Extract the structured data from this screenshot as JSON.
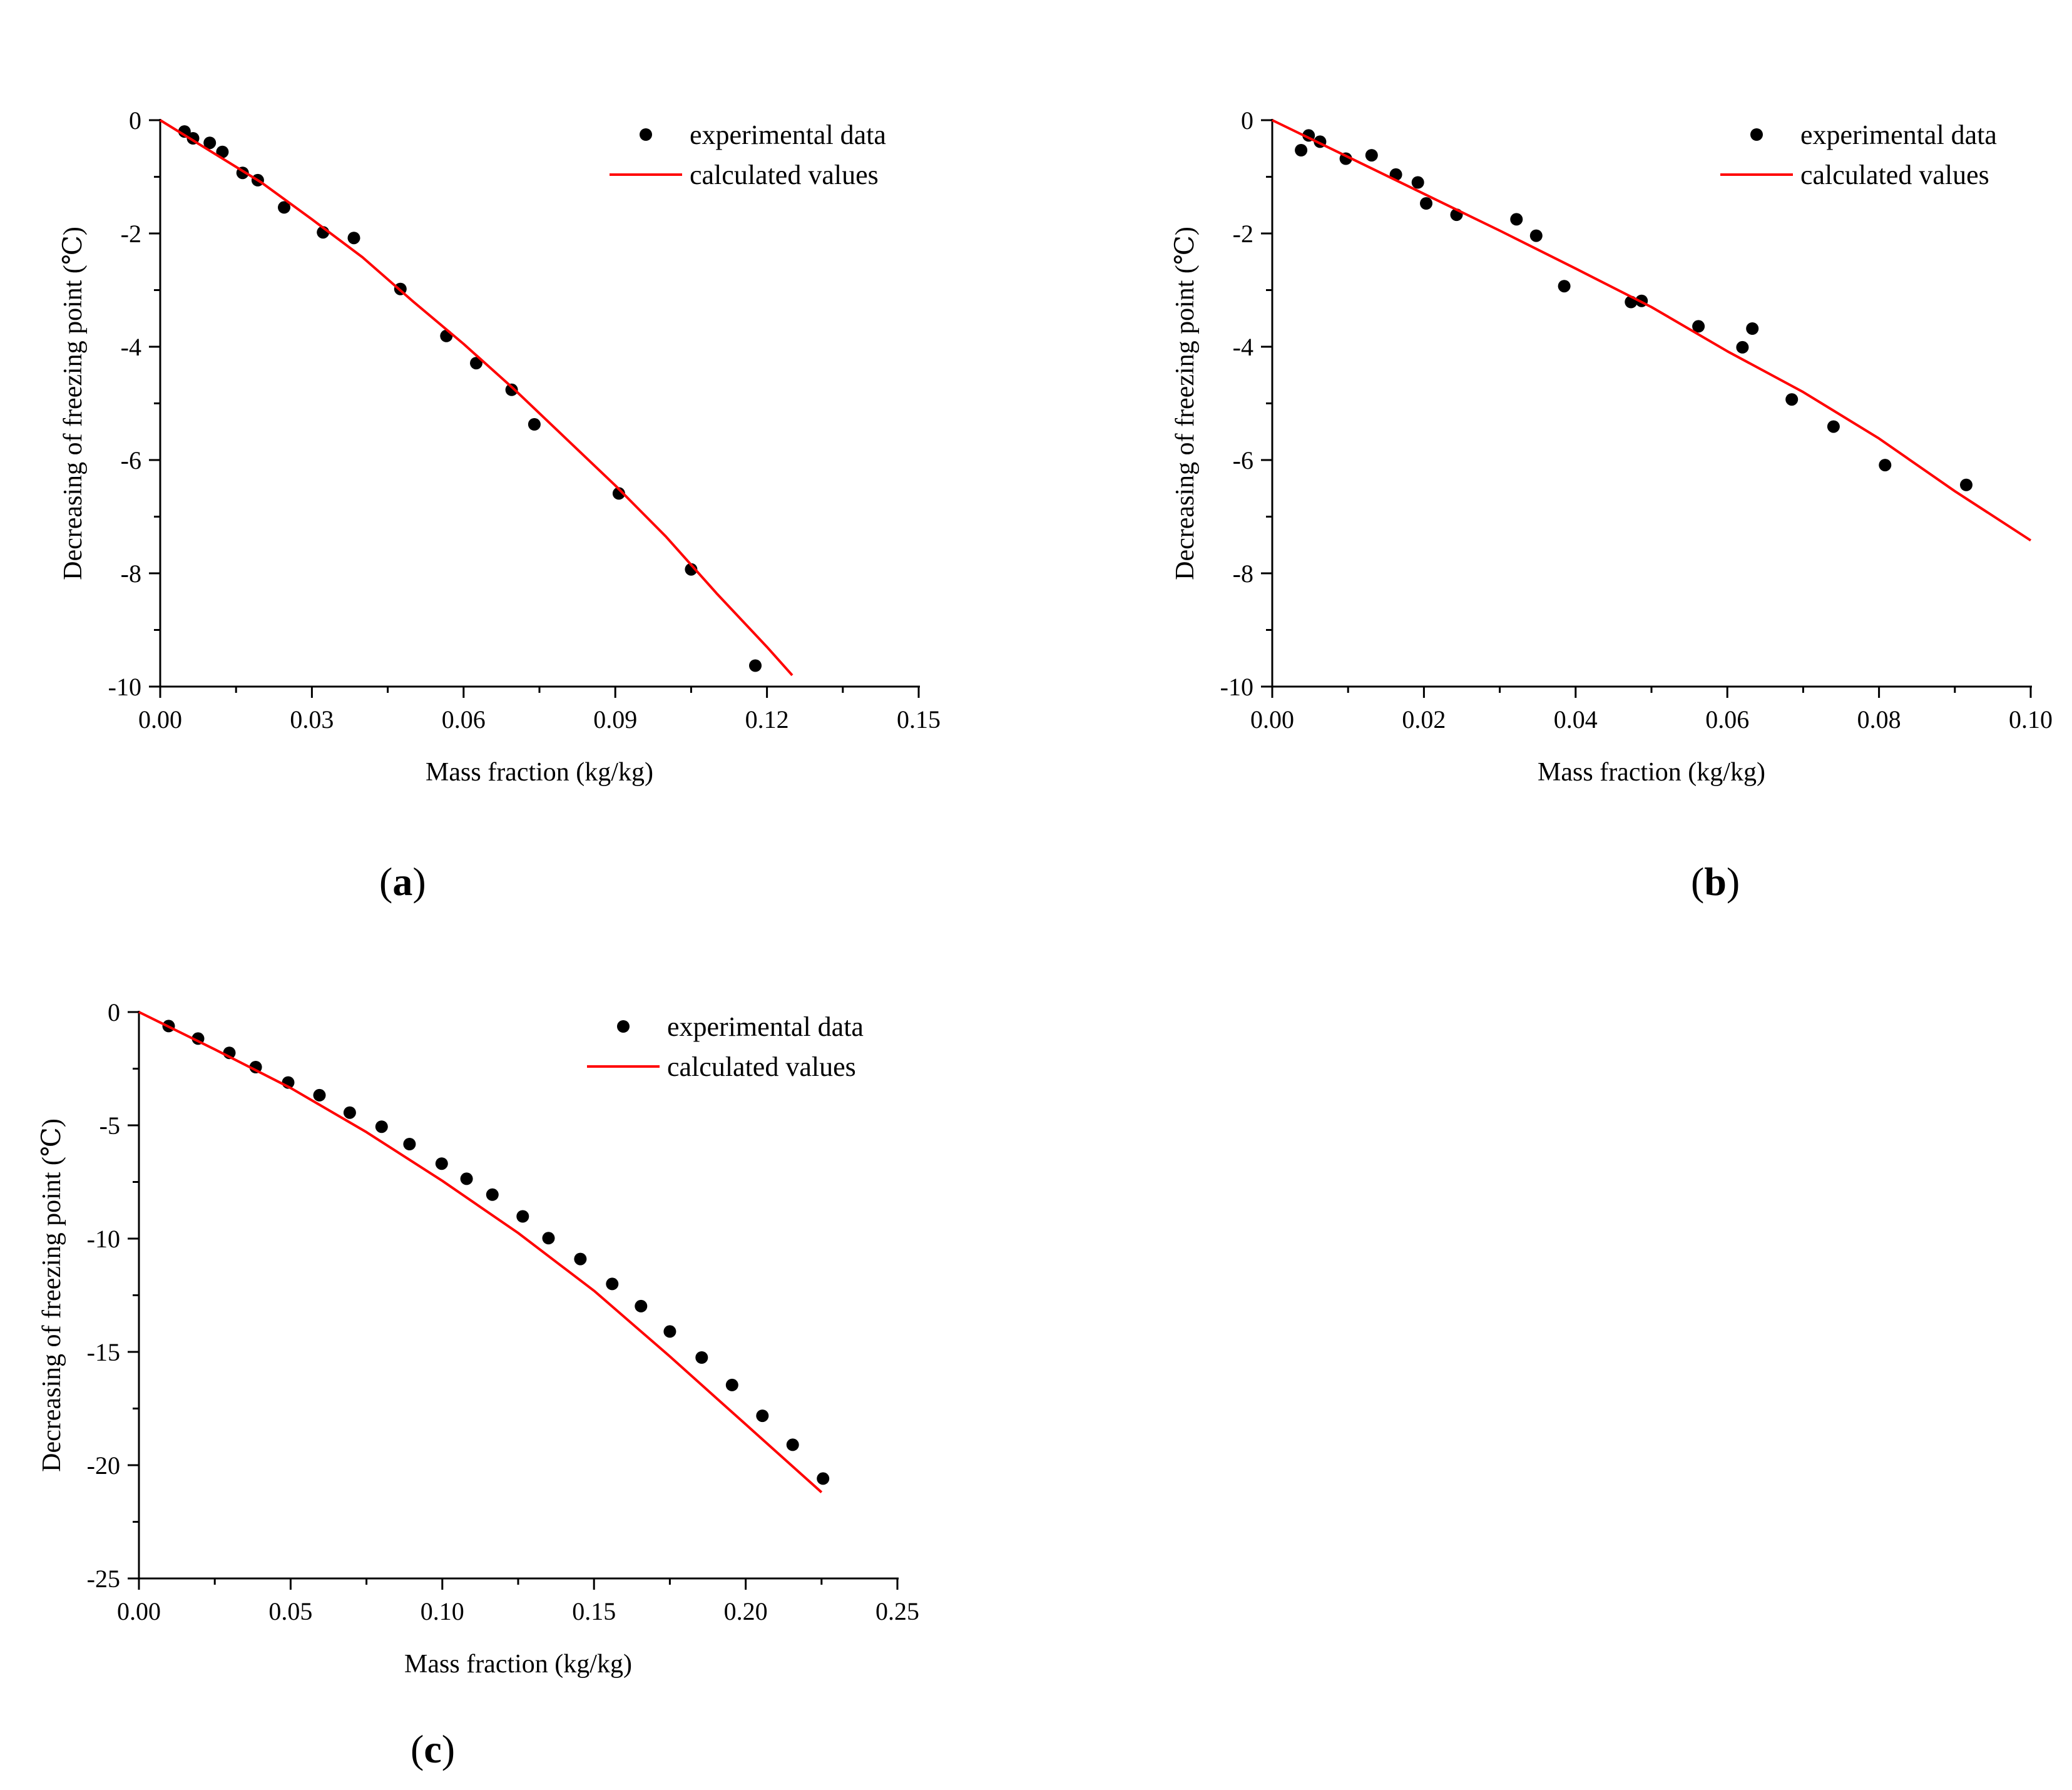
{
  "colors": {
    "points": "#000000",
    "line": "#ff0000",
    "axis": "#000000"
  },
  "panel_labels": {
    "a_open": "(",
    "a_letter": "a",
    "a_close": ")",
    "b_open": "(",
    "b_letter": "b",
    "b_close": ")",
    "c_open": "(",
    "c_letter": "c",
    "c_close": ")"
  },
  "chart_data": [
    {
      "id": "a",
      "type": "scatter",
      "title": "",
      "xlabel": "Mass fraction (kg/kg)",
      "ylabel": "Decreasing of freezing point (℃)",
      "xlim": [
        0,
        0.15
      ],
      "ylim": [
        -10,
        0
      ],
      "xticks": [
        "0.00",
        "0.03",
        "0.06",
        "0.09",
        "0.12",
        "0.15"
      ],
      "xtick_values": [
        0,
        0.03,
        0.06,
        0.09,
        0.12,
        0.15
      ],
      "yticks": [
        "0",
        "-2",
        "-4",
        "-6",
        "-8",
        "-10"
      ],
      "ytick_values": [
        0,
        -2,
        -4,
        -6,
        -8,
        -10
      ],
      "legend": {
        "position": "top-right",
        "entries": [
          "experimental data",
          "calculated values"
        ]
      },
      "series": [
        {
          "name": "experimental data",
          "kind": "scatter",
          "x": [
            0.0048,
            0.0065,
            0.0098,
            0.0123,
            0.0163,
            0.0193,
            0.0245,
            0.0322,
            0.0383,
            0.0475,
            0.0566,
            0.0625,
            0.0695,
            0.074,
            0.0907,
            0.105,
            0.1177
          ],
          "y": [
            -0.2,
            -0.32,
            -0.4,
            -0.56,
            -0.93,
            -1.06,
            -1.54,
            -1.98,
            -2.08,
            -2.98,
            -3.81,
            -4.29,
            -4.76,
            -5.37,
            -6.59,
            -7.93,
            -9.63
          ]
        },
        {
          "name": "calculated values",
          "kind": "line",
          "x": [
            0,
            0.01,
            0.02,
            0.03,
            0.04,
            0.05,
            0.06,
            0.07,
            0.08,
            0.09,
            0.1,
            0.11,
            0.12,
            0.125
          ],
          "y": [
            0,
            -0.55,
            -1.1,
            -1.75,
            -2.42,
            -3.2,
            -3.95,
            -4.75,
            -5.6,
            -6.45,
            -7.35,
            -8.35,
            -9.3,
            -9.8
          ]
        }
      ]
    },
    {
      "id": "b",
      "type": "scatter",
      "title": "",
      "xlabel": "Mass fraction (kg/kg)",
      "ylabel": "Decreasing of freezing point (℃)",
      "xlim": [
        0,
        0.1
      ],
      "ylim": [
        -10,
        0
      ],
      "xticks": [
        "0.00",
        "0.02",
        "0.04",
        "0.06",
        "0.08",
        "0.10"
      ],
      "xtick_values": [
        0,
        0.02,
        0.04,
        0.06,
        0.08,
        0.1
      ],
      "yticks": [
        "0",
        "-2",
        "-4",
        "-6",
        "-8",
        "-10"
      ],
      "ytick_values": [
        0,
        -2,
        -4,
        -6,
        -8,
        -10
      ],
      "legend": {
        "position": "top-right",
        "entries": [
          "experimental data",
          "calculated values"
        ]
      },
      "series": [
        {
          "name": "experimental data",
          "kind": "scatter",
          "x": [
            0.0038,
            0.0048,
            0.0063,
            0.0097,
            0.0131,
            0.0163,
            0.0192,
            0.0203,
            0.0243,
            0.0322,
            0.0348,
            0.0385,
            0.0473,
            0.0487,
            0.0562,
            0.062,
            0.0633,
            0.0685,
            0.074,
            0.0808,
            0.0915
          ],
          "y": [
            -0.53,
            -0.27,
            -0.38,
            -0.68,
            -0.62,
            -0.96,
            -1.1,
            -1.47,
            -1.67,
            -1.75,
            -2.04,
            -2.93,
            -3.21,
            -3.19,
            -3.64,
            -4.01,
            -3.68,
            -4.93,
            -5.41,
            -6.09,
            -6.44
          ]
        },
        {
          "name": "calculated values",
          "kind": "line",
          "x": [
            0,
            0.01,
            0.02,
            0.03,
            0.04,
            0.05,
            0.06,
            0.07,
            0.08,
            0.09,
            0.1
          ],
          "y": [
            0,
            -0.65,
            -1.3,
            -1.95,
            -2.62,
            -3.3,
            -4.08,
            -4.8,
            -5.62,
            -6.55,
            -7.42
          ]
        }
      ]
    },
    {
      "id": "c",
      "type": "scatter",
      "title": "",
      "xlabel": "Mass fraction (kg/kg)",
      "ylabel": "Decreasing  of freezing point (℃)",
      "xlim": [
        0,
        0.25
      ],
      "ylim": [
        -25,
        0
      ],
      "xticks": [
        "0.00",
        "0.05",
        "0.10",
        "0.15",
        "0.20",
        "0.25"
      ],
      "xtick_values": [
        0,
        0.05,
        0.1,
        0.15,
        0.2,
        0.25
      ],
      "yticks": [
        "0",
        "-5",
        "-10",
        "-15",
        "-20",
        "-25"
      ],
      "ytick_values": [
        0,
        -5,
        -10,
        -15,
        -20,
        -25
      ],
      "legend": {
        "position": "top-right",
        "entries": [
          "experimental data",
          "calculated values"
        ]
      },
      "series": [
        {
          "name": "experimental data",
          "kind": "scatter",
          "x": [
            0.0098,
            0.0195,
            0.0298,
            0.0385,
            0.0492,
            0.0595,
            0.0695,
            0.08,
            0.0892,
            0.0998,
            0.108,
            0.1165,
            0.1265,
            0.135,
            0.1455,
            0.156,
            0.1655,
            0.175,
            0.1855,
            0.1955,
            0.2055,
            0.2155,
            0.2255
          ],
          "y": [
            -0.62,
            -1.17,
            -1.8,
            -2.43,
            -3.11,
            -3.67,
            -4.44,
            -5.06,
            -5.83,
            -6.69,
            -7.36,
            -8.06,
            -9.02,
            -9.98,
            -10.9,
            -12.0,
            -12.98,
            -14.1,
            -15.25,
            -16.46,
            -17.82,
            -19.1,
            -20.59
          ]
        },
        {
          "name": "calculated values",
          "kind": "line",
          "x": [
            0,
            0.025,
            0.05,
            0.075,
            0.1,
            0.125,
            0.15,
            0.175,
            0.2,
            0.225
          ],
          "y": [
            0,
            -1.65,
            -3.35,
            -5.3,
            -7.45,
            -9.75,
            -12.3,
            -15.2,
            -18.2,
            -21.2
          ]
        }
      ]
    }
  ]
}
